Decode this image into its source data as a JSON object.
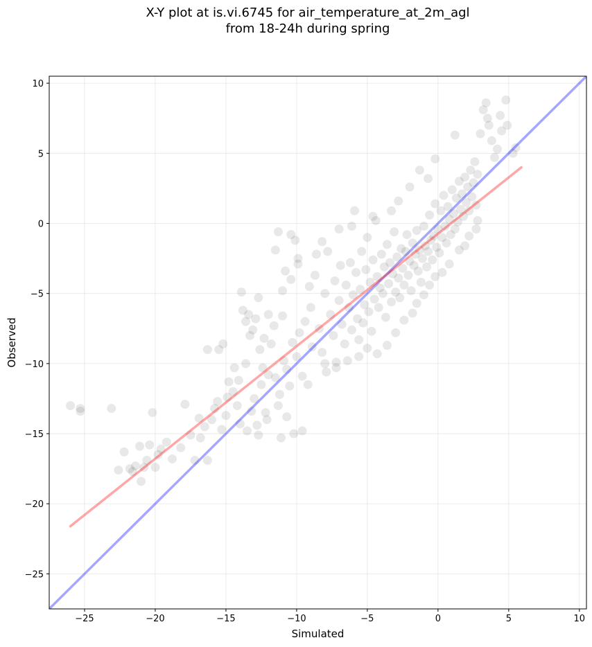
{
  "chart_data": {
    "type": "scatter",
    "title_line1": "X-Y plot at is.vi.6745 for air_temperature_at_2m_agl",
    "title_line2": "from 18-24h during spring",
    "xlabel": "Simulated",
    "ylabel": "Observed",
    "xlim": [
      -27.5,
      10.5
    ],
    "ylim": [
      -27.5,
      10.5
    ],
    "xticks": [
      -25,
      -20,
      -15,
      -10,
      -5,
      0,
      5,
      10
    ],
    "yticks": [
      -25,
      -20,
      -15,
      -10,
      -5,
      0,
      5,
      10
    ],
    "xtick_labels": [
      "−25",
      "−20",
      "−15",
      "−10",
      "−5",
      "0",
      "5",
      "10"
    ],
    "ytick_labels": [
      "−25",
      "−20",
      "−15",
      "−10",
      "−5",
      "0",
      "5",
      "10"
    ],
    "grid": true,
    "point_color": "#000000",
    "identity_line": {
      "color": "#0000ff",
      "from": [
        -27.5,
        -27.5
      ],
      "to": [
        10.5,
        10.5
      ]
    },
    "regression_line": {
      "color": "#ff0000",
      "from": [
        -26.0,
        -21.6
      ],
      "to": [
        5.9,
        4.0
      ]
    },
    "points": [
      [
        -26.0,
        -13.0
      ],
      [
        -25.3,
        -13.2
      ],
      [
        -25.3,
        -13.4
      ],
      [
        -23.1,
        -13.2
      ],
      [
        -22.6,
        -17.6
      ],
      [
        -22.2,
        -16.3
      ],
      [
        -21.8,
        -17.5
      ],
      [
        -21.6,
        -17.7
      ],
      [
        -21.4,
        -17.3
      ],
      [
        -21.1,
        -15.9
      ],
      [
        -21.0,
        -18.4
      ],
      [
        -20.8,
        -17.4
      ],
      [
        -20.6,
        -16.9
      ],
      [
        -20.4,
        -15.8
      ],
      [
        -20.2,
        -13.5
      ],
      [
        -20.0,
        -17.4
      ],
      [
        -19.8,
        -16.5
      ],
      [
        -19.6,
        -16.1
      ],
      [
        -19.2,
        -15.6
      ],
      [
        -18.8,
        -16.8
      ],
      [
        -18.2,
        -16.0
      ],
      [
        -17.9,
        -12.9
      ],
      [
        -17.5,
        -15.1
      ],
      [
        -17.2,
        -16.9
      ],
      [
        -16.9,
        -13.9
      ],
      [
        -16.8,
        -15.3
      ],
      [
        -16.5,
        -14.5
      ],
      [
        -16.3,
        -16.9
      ],
      [
        -16.0,
        -14.0
      ],
      [
        -15.8,
        -13.2
      ],
      [
        -15.6,
        -12.7
      ],
      [
        -15.3,
        -14.7
      ],
      [
        -15.0,
        -13.7
      ],
      [
        -14.8,
        -11.3
      ],
      [
        -15.2,
        -8.6
      ],
      [
        -15.5,
        -9.0
      ],
      [
        -16.3,
        -9.0
      ],
      [
        -14.5,
        -12.0
      ],
      [
        -14.2,
        -13.0
      ],
      [
        -14.0,
        -14.3
      ],
      [
        -13.9,
        -4.9
      ],
      [
        -13.8,
        -6.2
      ],
      [
        -13.6,
        -7.0
      ],
      [
        -13.4,
        -6.5
      ],
      [
        -13.3,
        -8.0
      ],
      [
        -13.1,
        -7.6
      ],
      [
        -12.9,
        -6.8
      ],
      [
        -12.7,
        -5.3
      ],
      [
        -12.6,
        -9.0
      ],
      [
        -12.4,
        -10.3
      ],
      [
        -12.2,
        -13.5
      ],
      [
        -12.0,
        -6.5
      ],
      [
        -11.8,
        -8.6
      ],
      [
        -11.5,
        -1.9
      ],
      [
        -11.3,
        -0.6
      ],
      [
        -11.0,
        -4.8
      ],
      [
        -10.8,
        -3.4
      ],
      [
        -10.4,
        -0.8
      ],
      [
        -10.1,
        -1.2
      ],
      [
        -9.9,
        -2.5
      ],
      [
        -13.0,
        -12.5
      ],
      [
        -12.5,
        -11.5
      ],
      [
        -12.0,
        -10.8
      ],
      [
        -11.5,
        -11.0
      ],
      [
        -11.2,
        -12.2
      ],
      [
        -10.9,
        -9.8
      ],
      [
        -10.7,
        -10.4
      ],
      [
        -10.5,
        -11.6
      ],
      [
        -10.3,
        -8.5
      ],
      [
        -10.0,
        -9.5
      ],
      [
        -9.8,
        -7.8
      ],
      [
        -9.6,
        -10.9
      ],
      [
        -9.4,
        -7.0
      ],
      [
        -9.2,
        -11.5
      ],
      [
        -9.0,
        -6.0
      ],
      [
        -8.9,
        -8.8
      ],
      [
        -8.7,
        -3.7
      ],
      [
        -8.6,
        -2.2
      ],
      [
        -8.4,
        -7.5
      ],
      [
        -8.2,
        -9.2
      ],
      [
        -8.0,
        -5.0
      ],
      [
        -7.9,
        -10.6
      ],
      [
        -7.8,
        -2.0
      ],
      [
        -7.6,
        -6.5
      ],
      [
        -7.4,
        -8.0
      ],
      [
        -7.3,
        -4.1
      ],
      [
        -7.2,
        -9.9
      ],
      [
        -7.0,
        -5.5
      ],
      [
        -6.9,
        -3.0
      ],
      [
        -6.8,
        -7.2
      ],
      [
        -6.6,
        -8.6
      ],
      [
        -6.5,
        -4.4
      ],
      [
        -6.3,
        -6.0
      ],
      [
        -6.2,
        -2.8
      ],
      [
        -6.1,
        -7.6
      ],
      [
        -6.0,
        -5.1
      ],
      [
        -5.9,
        0.9
      ],
      [
        -5.8,
        -3.5
      ],
      [
        -5.7,
        -6.8
      ],
      [
        -5.6,
        -8.3
      ],
      [
        -5.5,
        -4.7
      ],
      [
        -5.4,
        -2.0
      ],
      [
        -5.3,
        -7.1
      ],
      [
        -5.2,
        -5.8
      ],
      [
        -5.1,
        -3.3
      ],
      [
        -5.0,
        -1.0
      ],
      [
        -4.9,
        -6.3
      ],
      [
        -4.8,
        -4.2
      ],
      [
        -4.7,
        -7.7
      ],
      [
        -4.6,
        -2.6
      ],
      [
        -4.5,
        -5.4
      ],
      [
        -4.4,
        0.2
      ],
      [
        -4.3,
        -3.8
      ],
      [
        -4.2,
        -6.0
      ],
      [
        -4.1,
        -4.6
      ],
      [
        -4.0,
        -2.2
      ],
      [
        -3.9,
        -5.0
      ],
      [
        -3.8,
        -3.1
      ],
      [
        -3.7,
        -6.7
      ],
      [
        -3.6,
        -1.5
      ],
      [
        -3.5,
        -4.3
      ],
      [
        -3.4,
        -2.8
      ],
      [
        -3.3,
        -5.6
      ],
      [
        -3.2,
        -3.6
      ],
      [
        -3.1,
        -0.6
      ],
      [
        -3.0,
        -4.9
      ],
      [
        -2.9,
        -2.4
      ],
      [
        -2.8,
        -3.9
      ],
      [
        -2.7,
        -5.3
      ],
      [
        -2.6,
        -1.8
      ],
      [
        -2.5,
        -3.2
      ],
      [
        -2.4,
        -4.4
      ],
      [
        -2.3,
        -2.0
      ],
      [
        -2.2,
        -0.8
      ],
      [
        -2.1,
        -3.7
      ],
      [
        -2.0,
        -2.7
      ],
      [
        -1.9,
        -4.8
      ],
      [
        -1.8,
        -1.4
      ],
      [
        -1.7,
        -3.0
      ],
      [
        -1.6,
        -2.2
      ],
      [
        -1.5,
        -0.5
      ],
      [
        -1.4,
        -3.4
      ],
      [
        -1.3,
        -1.9
      ],
      [
        -1.2,
        -4.2
      ],
      [
        -1.1,
        -2.5
      ],
      [
        -1.0,
        -0.2
      ],
      [
        -0.9,
        -1.6
      ],
      [
        -0.8,
        -3.1
      ],
      [
        -0.7,
        -2.0
      ],
      [
        -0.6,
        0.6
      ],
      [
        -0.5,
        -1.2
      ],
      [
        -0.4,
        -2.6
      ],
      [
        -0.3,
        -0.9
      ],
      [
        -0.2,
        1.4
      ],
      [
        -0.1,
        -1.7
      ],
      [
        0.0,
        -0.4
      ],
      [
        0.1,
        -2.1
      ],
      [
        0.2,
        0.9
      ],
      [
        0.3,
        -1.0
      ],
      [
        0.4,
        2.0
      ],
      [
        0.5,
        -0.2
      ],
      [
        0.6,
        -1.4
      ],
      [
        0.7,
        1.2
      ],
      [
        0.8,
        0.3
      ],
      [
        0.9,
        -0.8
      ],
      [
        1.0,
        2.4
      ],
      [
        1.1,
        0.7
      ],
      [
        1.2,
        -0.4
      ],
      [
        1.3,
        1.8
      ],
      [
        1.4,
        0.1
      ],
      [
        1.5,
        3.0
      ],
      [
        1.6,
        1.0
      ],
      [
        1.7,
        2.1
      ],
      [
        1.8,
        0.5
      ],
      [
        1.9,
        3.3
      ],
      [
        2.0,
        1.5
      ],
      [
        2.1,
        2.6
      ],
      [
        2.2,
        0.9
      ],
      [
        2.3,
        3.8
      ],
      [
        2.4,
        1.9
      ],
      [
        2.5,
        2.9
      ],
      [
        2.6,
        4.4
      ],
      [
        2.7,
        1.3
      ],
      [
        2.8,
        3.5
      ],
      [
        3.0,
        6.4
      ],
      [
        3.2,
        8.1
      ],
      [
        3.4,
        8.6
      ],
      [
        3.5,
        7.5
      ],
      [
        3.6,
        7.0
      ],
      [
        3.8,
        5.9
      ],
      [
        4.0,
        4.7
      ],
      [
        4.2,
        5.3
      ],
      [
        4.4,
        7.7
      ],
      [
        4.5,
        6.6
      ],
      [
        4.8,
        8.8
      ],
      [
        4.9,
        7.0
      ],
      [
        5.3,
        5.0
      ],
      [
        5.5,
        5.4
      ],
      [
        2.7,
        -0.4
      ],
      [
        1.2,
        6.3
      ],
      [
        -0.2,
        4.6
      ],
      [
        -0.7,
        3.2
      ],
      [
        -1.3,
        3.8
      ],
      [
        -2.0,
        2.6
      ],
      [
        -2.8,
        1.6
      ],
      [
        -3.3,
        0.9
      ],
      [
        -4.6,
        0.5
      ],
      [
        -6.1,
        -0.2
      ],
      [
        -7.0,
        -0.4
      ],
      [
        -8.2,
        -1.3
      ],
      [
        -9.1,
        -4.5
      ],
      [
        -9.9,
        -2.9
      ],
      [
        -10.4,
        -4.0
      ],
      [
        -11.0,
        -6.6
      ],
      [
        -11.6,
        -7.3
      ],
      [
        -12.3,
        -8.2
      ],
      [
        -13.6,
        -10.0
      ],
      [
        -14.1,
        -11.2
      ],
      [
        -14.4,
        -10.3
      ],
      [
        -14.9,
        -12.4
      ],
      [
        -13.2,
        -13.4
      ],
      [
        -12.8,
        -14.4
      ],
      [
        -12.1,
        -14.0
      ],
      [
        -11.3,
        -13.0
      ],
      [
        -10.7,
        -13.8
      ],
      [
        -10.2,
        -15.0
      ],
      [
        -9.6,
        -14.8
      ],
      [
        -11.1,
        -15.3
      ],
      [
        -12.7,
        -15.1
      ],
      [
        -13.5,
        -14.8
      ],
      [
        -1.8,
        -6.4
      ],
      [
        -2.4,
        -6.9
      ],
      [
        -3.0,
        -7.8
      ],
      [
        -3.6,
        -8.7
      ],
      [
        -4.3,
        -9.3
      ],
      [
        -5.0,
        -8.9
      ],
      [
        -5.6,
        -9.5
      ],
      [
        -6.4,
        -9.8
      ],
      [
        -7.2,
        -10.3
      ],
      [
        -8.0,
        -10.0
      ],
      [
        0.3,
        -3.5
      ],
      [
        0.8,
        -2.9
      ],
      [
        1.5,
        -1.9
      ],
      [
        2.2,
        -0.9
      ],
      [
        -0.6,
        -4.4
      ],
      [
        -1.0,
        -5.1
      ],
      [
        -1.5,
        -5.7
      ],
      [
        -0.2,
        -3.8
      ],
      [
        1.9,
        -1.6
      ],
      [
        2.8,
        0.2
      ]
    ]
  }
}
